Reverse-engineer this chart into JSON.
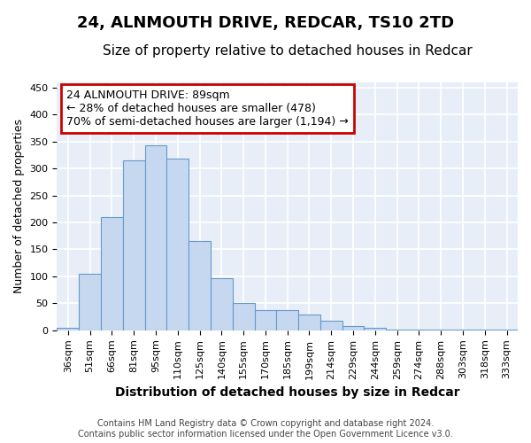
{
  "title_line1": "24, ALNMOUTH DRIVE, REDCAR, TS10 2TD",
  "title_line2": "Size of property relative to detached houses in Redcar",
  "xlabel": "Distribution of detached houses by size in Redcar",
  "ylabel": "Number of detached properties",
  "footer_line1": "Contains HM Land Registry data © Crown copyright and database right 2024.",
  "footer_line2": "Contains public sector information licensed under the Open Government Licence v3.0.",
  "categories": [
    "36sqm",
    "51sqm",
    "66sqm",
    "81sqm",
    "95sqm",
    "110sqm",
    "125sqm",
    "140sqm",
    "155sqm",
    "170sqm",
    "185sqm",
    "199sqm",
    "214sqm",
    "229sqm",
    "244sqm",
    "259sqm",
    "274sqm",
    "288sqm",
    "303sqm",
    "318sqm",
    "333sqm"
  ],
  "values": [
    5,
    105,
    210,
    315,
    343,
    318,
    165,
    97,
    50,
    37,
    37,
    29,
    18,
    8,
    5,
    2,
    1,
    1,
    1,
    1,
    1
  ],
  "bar_color": "#c5d8f0",
  "bar_edge_color": "#6699cc",
  "annotation_text_line1": "24 ALNMOUTH DRIVE: 89sqm",
  "annotation_text_line2": "← 28% of detached houses are smaller (478)",
  "annotation_text_line3": "70% of semi-detached houses are larger (1,194) →",
  "annotation_box_facecolor": "#ffffff",
  "annotation_box_edgecolor": "#cc0000",
  "ylim": [
    0,
    460
  ],
  "yticks": [
    0,
    50,
    100,
    150,
    200,
    250,
    300,
    350,
    400,
    450
  ],
  "plot_bg_color": "#e8eef8",
  "grid_color": "#ffffff",
  "fig_bg_color": "#ffffff",
  "title1_fontsize": 13,
  "title2_fontsize": 11,
  "tick_fontsize": 8,
  "ylabel_fontsize": 9,
  "xlabel_fontsize": 10,
  "footer_fontsize": 7,
  "annot_fontsize": 9
}
